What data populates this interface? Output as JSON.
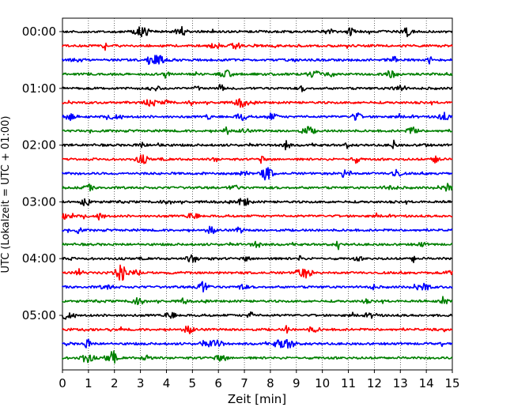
{
  "chart_data": {
    "type": "line",
    "title": "",
    "xlabel": "Zeit  [min]",
    "ylabel": "UTC (Lokalzeit = UTC + 01:00)",
    "xlim": [
      0,
      15
    ],
    "x_ticks": [
      0,
      1,
      2,
      3,
      4,
      5,
      6,
      7,
      8,
      9,
      10,
      11,
      12,
      13,
      14,
      15
    ],
    "x_tick_labels": [
      "0",
      "1",
      "2",
      "3",
      "4",
      "5",
      "6",
      "7",
      "8",
      "9",
      "10",
      "11",
      "12",
      "13",
      "14",
      "15"
    ],
    "y_tick_labels": [
      "00:00",
      "01:00",
      "02:00",
      "03:00",
      "04:00",
      "05:00"
    ],
    "y_tick_traces": [
      0,
      4,
      8,
      12,
      16,
      20
    ],
    "trace_count": 24,
    "trace_interval_min": 15,
    "grid": "vertical-dotted",
    "colors_cycle": [
      "#000000",
      "#ff0000",
      "#0000ff",
      "#008000"
    ],
    "series": [
      {
        "start": "00:00",
        "color": "#000000"
      },
      {
        "start": "00:15",
        "color": "#ff0000"
      },
      {
        "start": "00:30",
        "color": "#0000ff"
      },
      {
        "start": "00:45",
        "color": "#008000"
      },
      {
        "start": "01:00",
        "color": "#000000"
      },
      {
        "start": "01:15",
        "color": "#ff0000"
      },
      {
        "start": "01:30",
        "color": "#0000ff"
      },
      {
        "start": "01:45",
        "color": "#008000"
      },
      {
        "start": "02:00",
        "color": "#000000"
      },
      {
        "start": "02:15",
        "color": "#ff0000"
      },
      {
        "start": "02:30",
        "color": "#0000ff"
      },
      {
        "start": "02:45",
        "color": "#008000"
      },
      {
        "start": "03:00",
        "color": "#000000"
      },
      {
        "start": "03:15",
        "color": "#ff0000"
      },
      {
        "start": "03:30",
        "color": "#0000ff"
      },
      {
        "start": "03:45",
        "color": "#008000"
      },
      {
        "start": "04:00",
        "color": "#000000"
      },
      {
        "start": "04:15",
        "color": "#ff0000"
      },
      {
        "start": "04:30",
        "color": "#0000ff"
      },
      {
        "start": "04:45",
        "color": "#008000"
      },
      {
        "start": "05:00",
        "color": "#000000"
      },
      {
        "start": "05:15",
        "color": "#ff0000"
      },
      {
        "start": "05:30",
        "color": "#0000ff"
      },
      {
        "start": "05:45",
        "color": "#008000"
      }
    ]
  }
}
